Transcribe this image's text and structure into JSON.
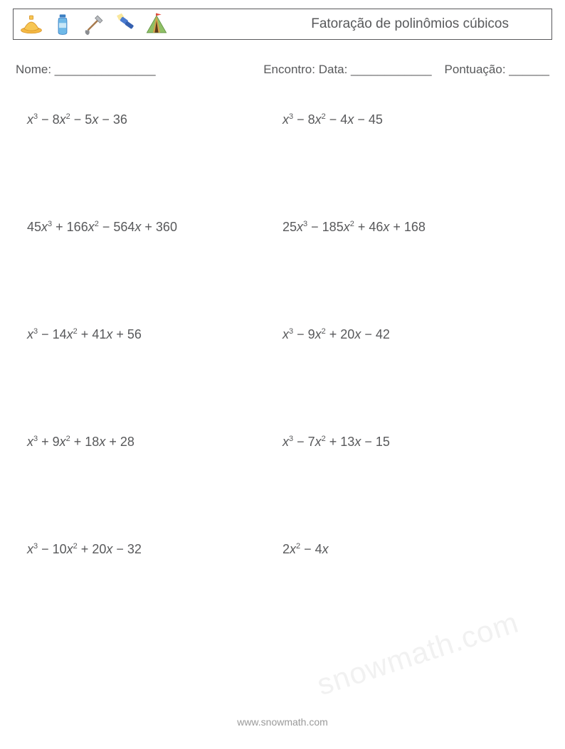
{
  "header": {
    "title": "Fatoração de polinômios cúbicos",
    "icons": [
      "hat",
      "bottle",
      "shovel",
      "flashlight",
      "tent"
    ]
  },
  "info": {
    "name_label": "Nome: _______________",
    "date_label": "Encontro: Data: ____________",
    "score_label": "Pontuação: ______"
  },
  "problems": [
    [
      {
        "terms": [
          {
            "c": "",
            "v": "x",
            "e": "3"
          },
          {
            "op": " − ",
            "c": "8",
            "v": "x",
            "e": "2"
          },
          {
            "op": " − ",
            "c": "5",
            "v": "x",
            "e": ""
          },
          {
            "op": " − ",
            "c": "36",
            "v": "",
            "e": ""
          }
        ]
      },
      {
        "terms": [
          {
            "c": "",
            "v": "x",
            "e": "3"
          },
          {
            "op": " − ",
            "c": "8",
            "v": "x",
            "e": "2"
          },
          {
            "op": " − ",
            "c": "4",
            "v": "x",
            "e": ""
          },
          {
            "op": " − ",
            "c": "45",
            "v": "",
            "e": ""
          }
        ]
      }
    ],
    [
      {
        "terms": [
          {
            "c": "45",
            "v": "x",
            "e": "3"
          },
          {
            "op": " + ",
            "c": "166",
            "v": "x",
            "e": "2"
          },
          {
            "op": " − ",
            "c": "564",
            "v": "x",
            "e": ""
          },
          {
            "op": " + ",
            "c": "360",
            "v": "",
            "e": ""
          }
        ]
      },
      {
        "terms": [
          {
            "c": "25",
            "v": "x",
            "e": "3"
          },
          {
            "op": " − ",
            "c": "185",
            "v": "x",
            "e": "2"
          },
          {
            "op": " + ",
            "c": "46",
            "v": "x",
            "e": ""
          },
          {
            "op": " + ",
            "c": "168",
            "v": "",
            "e": ""
          }
        ]
      }
    ],
    [
      {
        "terms": [
          {
            "c": "",
            "v": "x",
            "e": "3"
          },
          {
            "op": " − ",
            "c": "14",
            "v": "x",
            "e": "2"
          },
          {
            "op": " + ",
            "c": "41",
            "v": "x",
            "e": ""
          },
          {
            "op": " + ",
            "c": "56",
            "v": "",
            "e": ""
          }
        ]
      },
      {
        "terms": [
          {
            "c": "",
            "v": "x",
            "e": "3"
          },
          {
            "op": " − ",
            "c": "9",
            "v": "x",
            "e": "2"
          },
          {
            "op": " + ",
            "c": "20",
            "v": "x",
            "e": ""
          },
          {
            "op": " − ",
            "c": "42",
            "v": "",
            "e": ""
          }
        ]
      }
    ],
    [
      {
        "terms": [
          {
            "c": "",
            "v": "x",
            "e": "3"
          },
          {
            "op": " + ",
            "c": "9",
            "v": "x",
            "e": "2"
          },
          {
            "op": " + ",
            "c": "18",
            "v": "x",
            "e": ""
          },
          {
            "op": " + ",
            "c": "28",
            "v": "",
            "e": ""
          }
        ]
      },
      {
        "terms": [
          {
            "c": "",
            "v": "x",
            "e": "3"
          },
          {
            "op": " − ",
            "c": "7",
            "v": "x",
            "e": "2"
          },
          {
            "op": " + ",
            "c": "13",
            "v": "x",
            "e": ""
          },
          {
            "op": " − ",
            "c": "15",
            "v": "",
            "e": ""
          }
        ]
      }
    ],
    [
      {
        "terms": [
          {
            "c": "",
            "v": "x",
            "e": "3"
          },
          {
            "op": " − ",
            "c": "10",
            "v": "x",
            "e": "2"
          },
          {
            "op": " + ",
            "c": "20",
            "v": "x",
            "e": ""
          },
          {
            "op": " − ",
            "c": "32",
            "v": "",
            "e": ""
          }
        ]
      },
      {
        "terms": [
          {
            "c": "2",
            "v": "x",
            "e": "2"
          },
          {
            "op": " − ",
            "c": "4",
            "v": "x",
            "e": ""
          }
        ]
      }
    ]
  ],
  "footer": "www.snowmath.com",
  "watermark": "snowmath.com",
  "colors": {
    "text": "#58595b",
    "border": "#58595b",
    "footer": "#9a9a9a",
    "background": "#ffffff"
  }
}
